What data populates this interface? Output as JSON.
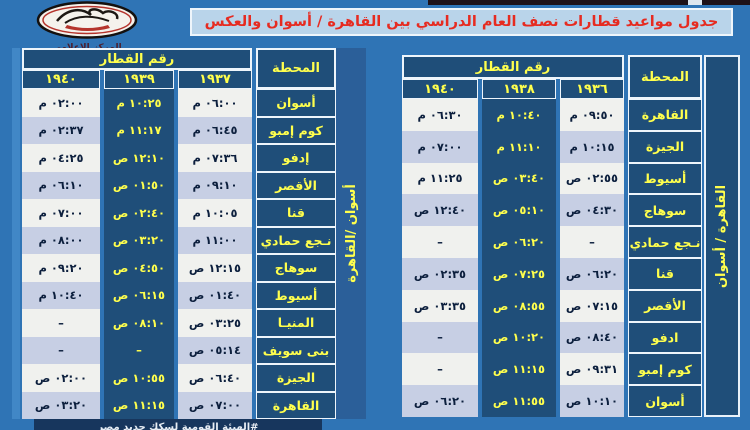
{
  "page": {
    "title": "جدول مواعيد قطارات نصف العام الدراسي بين القاهرة / أسوان والعكس"
  },
  "logo": {
    "caption": "المركز الإعلامي"
  },
  "footer": {
    "text": "#الهيئة القومية لسكك حديد مصر"
  },
  "colors": {
    "page_bg": "#2f74b5",
    "navy_cell": "#1f4e79",
    "yellow_text": "#ffff4d",
    "title_red": "#e62b21",
    "title_bg": "#b9d4ea",
    "row_white": "#f0f1ee",
    "row_periwinkle": "#c7cfe4"
  },
  "tables": {
    "left": {
      "direction_label": "أسوان /القاهرة",
      "header": {
        "train_no": "رقم القطار",
        "station": "المحطة"
      },
      "train_numbers": [
        "١٩٤٠",
        "١٩٣٩",
        "١٩٣٧"
      ],
      "rows": [
        {
          "station": "أسوان",
          "times": [
            "٠٢:٠٠ م",
            "١٠:٢٥ م",
            "٠٦:٠٠ م"
          ]
        },
        {
          "station": "كوم إمبو",
          "times": [
            "٠٢:٣٧ م",
            "١١:١٧ م",
            "٠٦:٤٥ م"
          ]
        },
        {
          "station": "إدفو",
          "times": [
            "٠٤:٢٥ م",
            "١٢:١٠ ص",
            "٠٧:٣٦ م"
          ]
        },
        {
          "station": "الأقصر",
          "times": [
            "٠٦:١٠ م",
            "٠١:٥٠ ص",
            "٠٩:١٠ م"
          ]
        },
        {
          "station": "قنا",
          "times": [
            "٠٧:٠٠ م",
            "٠٢:٤٠ ص",
            "١٠:٠٥ م"
          ]
        },
        {
          "station": "نـجع حمادي",
          "times": [
            "٠٨:٠٠ م",
            "٠٣:٢٠ ص",
            "١١:٠٠ م"
          ]
        },
        {
          "station": "سوهاج",
          "times": [
            "٠٩:٢٠ م",
            "٠٤:٥٠ ص",
            "١٢:١٥ ص"
          ]
        },
        {
          "station": "أسيوط",
          "times": [
            "١٠:٤٠ م",
            "٠٦:١٥ ص",
            "٠١:٤٠ ص"
          ]
        },
        {
          "station": "المنيـا",
          "times": [
            "–",
            "٠٨:١٠ ص",
            "٠٣:٢٥ ص"
          ]
        },
        {
          "station": "بنى سويف",
          "times": [
            "–",
            "–",
            "٠٥:١٤ ص"
          ]
        },
        {
          "station": "الجيزة",
          "times": [
            "٠٢:٠٠ ص",
            "١٠:٥٥ ص",
            "٠٦:٤٠ ص"
          ]
        },
        {
          "station": "القاهرة",
          "times": [
            "٠٣:٢٠ ص",
            "١١:١٥ ص",
            "٠٧:٠٠ ص"
          ]
        }
      ]
    },
    "right": {
      "direction_label": "القاهرة / أسوان",
      "header": {
        "train_no": "رقم القطار",
        "station": "المحطة"
      },
      "train_numbers": [
        "١٩٤٠",
        "١٩٣٨",
        "١٩٣٦"
      ],
      "rows": [
        {
          "station": "القاهرة",
          "times": [
            "٠٦:٣٠ م",
            "١٠:٤٠ م",
            "٠٩:٥٠ م"
          ]
        },
        {
          "station": "الجيزة",
          "times": [
            "٠٧:٠٠ م",
            "١١:١٠ م",
            "١٠:١٥ م"
          ]
        },
        {
          "station": "أسيوط",
          "times": [
            "١١:٢٥ م",
            "٠٣:٤٠ ص",
            "٠٢:٥٥ ص"
          ]
        },
        {
          "station": "سوهاج",
          "times": [
            "١٢:٤٠ ص",
            "٠٥:١٠ ص",
            "٠٤:٣٠ ص"
          ]
        },
        {
          "station": "نـجع حمادي",
          "times": [
            "–",
            "٠٦:٢٠ ص",
            "–"
          ]
        },
        {
          "station": "قنا",
          "times": [
            "٠٢:٣٥ ص",
            "٠٧:٢٥ ص",
            "٠٦:٢٠ ص"
          ]
        },
        {
          "station": "الأقصر",
          "times": [
            "٠٣:٣٥ ص",
            "٠٨:٥٥ ص",
            "٠٧:١٥ ص"
          ]
        },
        {
          "station": "ادفو",
          "times": [
            "–",
            "١٠:٢٠ ص",
            "٠٨:٤٠ ص"
          ]
        },
        {
          "station": "كوم إمبو",
          "times": [
            "–",
            "١١:١٥ ص",
            "٠٩:٣١ ص"
          ]
        },
        {
          "station": "أسوان",
          "times": [
            "٠٦:٢٠ ص",
            "١١:٥٥ ص",
            "١٠:١٠ ص"
          ]
        }
      ]
    }
  }
}
